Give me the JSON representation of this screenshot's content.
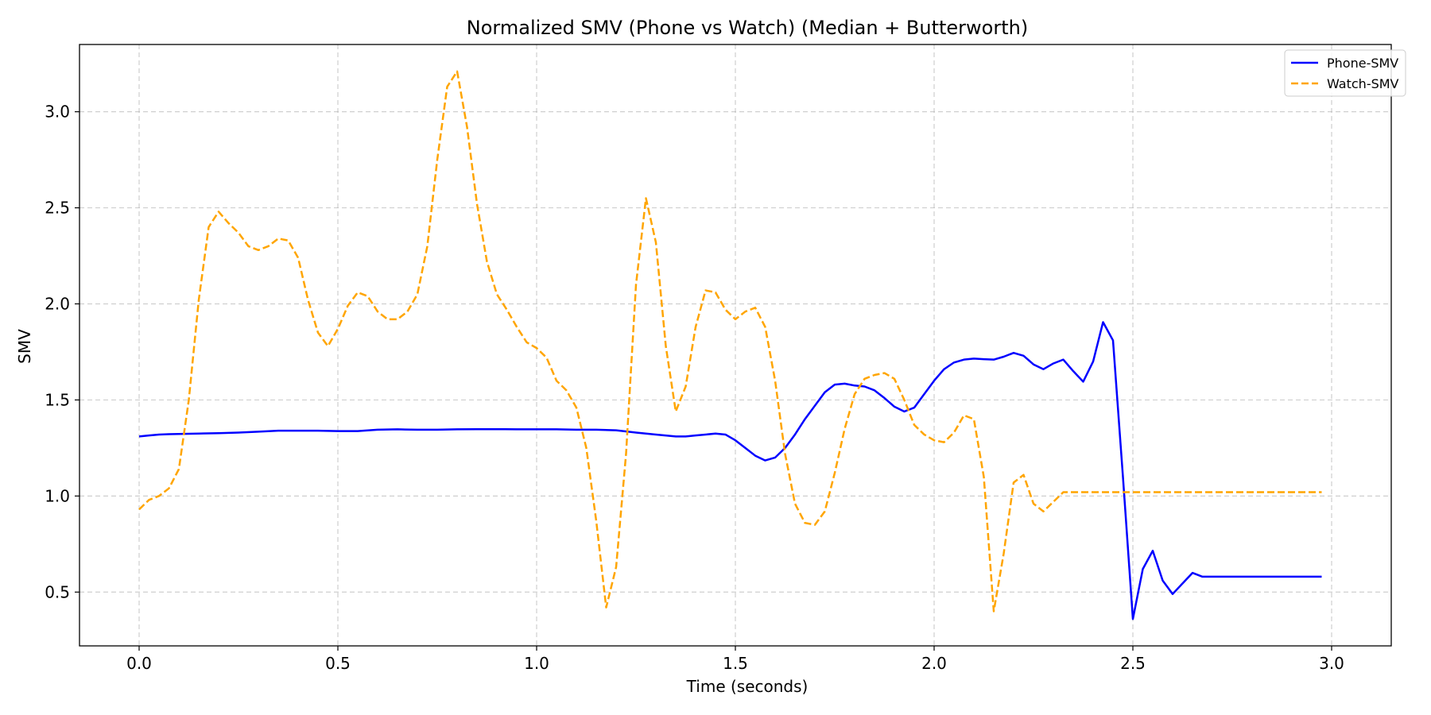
{
  "chart_data": {
    "type": "line",
    "title": "Normalized SMV (Phone vs Watch) (Median + Butterworth)",
    "xlabel": "Time (seconds)",
    "ylabel": "SMV",
    "xlim": [
      -0.15,
      3.15
    ],
    "ylim": [
      0.22,
      3.35
    ],
    "xticks": [
      0.0,
      0.5,
      1.0,
      1.5,
      2.0,
      2.5,
      3.0
    ],
    "xtick_labels": [
      "0.0",
      "0.5",
      "1.0",
      "1.5",
      "2.0",
      "2.5",
      "3.0"
    ],
    "yticks": [
      0.5,
      1.0,
      1.5,
      2.0,
      2.5,
      3.0
    ],
    "ytick_labels": [
      "0.5",
      "1.0",
      "1.5",
      "2.0",
      "2.5",
      "3.0"
    ],
    "grid": true,
    "legend_position": "top-right",
    "series": [
      {
        "name": "Phone-SMV",
        "color": "#0000ff",
        "style": "solid",
        "x": [
          0.0,
          0.025,
          0.05,
          0.075,
          0.1,
          0.15,
          0.2,
          0.25,
          0.3,
          0.35,
          0.4,
          0.45,
          0.5,
          0.55,
          0.6,
          0.65,
          0.7,
          0.75,
          0.8,
          0.85,
          0.9,
          0.95,
          1.0,
          1.05,
          1.1,
          1.15,
          1.2,
          1.25,
          1.3,
          1.35,
          1.375,
          1.4,
          1.425,
          1.45,
          1.475,
          1.5,
          1.525,
          1.55,
          1.575,
          1.6,
          1.625,
          1.65,
          1.675,
          1.7,
          1.725,
          1.75,
          1.775,
          1.8,
          1.825,
          1.85,
          1.875,
          1.9,
          1.925,
          1.95,
          1.975,
          2.0,
          2.025,
          2.05,
          2.075,
          2.1,
          2.125,
          2.15,
          2.175,
          2.2,
          2.225,
          2.25,
          2.275,
          2.3,
          2.325,
          2.35,
          2.375,
          2.4,
          2.425,
          2.45,
          2.475,
          2.5,
          2.525,
          2.55,
          2.575,
          2.6,
          2.625,
          2.65,
          2.675,
          2.7,
          2.725,
          2.75,
          2.775,
          2.8,
          2.825,
          2.85,
          2.875,
          2.9,
          2.925,
          2.95,
          2.975
        ],
        "values": [
          1.31,
          1.315,
          1.32,
          1.322,
          1.323,
          1.325,
          1.327,
          1.33,
          1.335,
          1.34,
          1.34,
          1.34,
          1.338,
          1.338,
          1.345,
          1.347,
          1.345,
          1.345,
          1.347,
          1.348,
          1.348,
          1.347,
          1.347,
          1.347,
          1.345,
          1.345,
          1.342,
          1.33,
          1.32,
          1.31,
          1.31,
          1.315,
          1.32,
          1.325,
          1.32,
          1.29,
          1.25,
          1.21,
          1.185,
          1.2,
          1.25,
          1.32,
          1.4,
          1.47,
          1.54,
          1.58,
          1.585,
          1.575,
          1.57,
          1.55,
          1.51,
          1.465,
          1.44,
          1.46,
          1.53,
          1.6,
          1.66,
          1.695,
          1.71,
          1.715,
          1.712,
          1.71,
          1.725,
          1.745,
          1.73,
          1.685,
          1.66,
          1.69,
          1.71,
          1.65,
          1.595,
          1.7,
          1.905,
          1.81,
          1.1,
          0.36,
          0.62,
          0.715,
          0.56,
          0.49,
          0.545,
          0.6,
          0.58,
          0.58,
          0.58,
          0.58,
          0.58,
          0.58,
          0.58,
          0.58,
          0.58,
          0.58,
          0.58,
          0.58,
          0.58
        ]
      },
      {
        "name": "Watch-SMV",
        "color": "#ffa500",
        "style": "dashed",
        "x": [
          0.0,
          0.025,
          0.05,
          0.075,
          0.1,
          0.125,
          0.15,
          0.175,
          0.2,
          0.225,
          0.25,
          0.275,
          0.3,
          0.325,
          0.35,
          0.375,
          0.4,
          0.425,
          0.45,
          0.475,
          0.5,
          0.525,
          0.55,
          0.575,
          0.6,
          0.625,
          0.65,
          0.675,
          0.7,
          0.725,
          0.75,
          0.775,
          0.8,
          0.825,
          0.85,
          0.875,
          0.9,
          0.925,
          0.95,
          0.975,
          1.0,
          1.025,
          1.05,
          1.075,
          1.1,
          1.125,
          1.15,
          1.175,
          1.2,
          1.225,
          1.25,
          1.275,
          1.3,
          1.325,
          1.35,
          1.375,
          1.4,
          1.425,
          1.45,
          1.475,
          1.5,
          1.525,
          1.55,
          1.575,
          1.6,
          1.625,
          1.65,
          1.675,
          1.7,
          1.725,
          1.75,
          1.775,
          1.8,
          1.825,
          1.85,
          1.875,
          1.9,
          1.925,
          1.95,
          1.975,
          2.0,
          2.025,
          2.05,
          2.075,
          2.1,
          2.125,
          2.15,
          2.175,
          2.2,
          2.225,
          2.25,
          2.275,
          2.3,
          2.325,
          2.35,
          2.375,
          2.4,
          2.425,
          2.45,
          2.475,
          2.5,
          2.525,
          2.55,
          2.575,
          2.6,
          2.625,
          2.65,
          2.675,
          2.7,
          2.725,
          2.75,
          2.775,
          2.8,
          2.825,
          2.85,
          2.875,
          2.9,
          2.925,
          2.95,
          2.975
        ],
        "values": [
          0.93,
          0.98,
          1.0,
          1.04,
          1.14,
          1.5,
          2.02,
          2.4,
          2.48,
          2.42,
          2.37,
          2.3,
          2.28,
          2.3,
          2.34,
          2.33,
          2.24,
          2.02,
          1.85,
          1.78,
          1.87,
          1.99,
          2.06,
          2.04,
          1.96,
          1.92,
          1.92,
          1.96,
          2.05,
          2.3,
          2.75,
          3.13,
          3.21,
          2.92,
          2.52,
          2.22,
          2.05,
          1.97,
          1.88,
          1.8,
          1.77,
          1.72,
          1.6,
          1.55,
          1.46,
          1.25,
          0.87,
          0.42,
          0.63,
          1.22,
          2.1,
          2.55,
          2.32,
          1.78,
          1.44,
          1.57,
          1.88,
          2.07,
          2.06,
          1.97,
          1.92,
          1.96,
          1.98,
          1.88,
          1.6,
          1.22,
          0.96,
          0.86,
          0.85,
          0.92,
          1.12,
          1.35,
          1.53,
          1.61,
          1.63,
          1.64,
          1.61,
          1.5,
          1.37,
          1.32,
          1.29,
          1.28,
          1.33,
          1.42,
          1.4,
          1.1,
          0.4,
          0.7,
          1.07,
          1.11,
          0.96,
          0.92,
          0.97,
          1.02,
          1.02,
          1.02,
          1.02,
          1.02,
          1.02,
          1.02,
          1.02,
          1.02,
          1.02,
          1.02,
          1.02,
          1.02,
          1.02,
          1.02,
          1.02,
          1.02,
          1.02,
          1.02,
          1.02,
          1.02,
          1.02,
          1.02,
          1.02,
          1.02,
          1.02,
          1.02
        ]
      }
    ]
  }
}
